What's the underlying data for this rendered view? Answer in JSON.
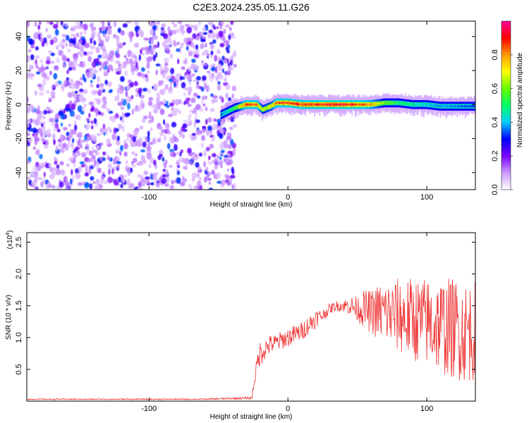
{
  "chart_data": [
    {
      "type": "heatmap",
      "title": "C2E3.2024.235.05.11.G26",
      "xlabel": "Height of straight line (km)",
      "ylabel": "Frequency (Hz)",
      "xlim": [
        -188,
        135
      ],
      "ylim": [
        -50,
        49
      ],
      "x_ticks": [
        -100,
        0,
        100
      ],
      "y_ticks": [
        -40,
        -20,
        0,
        20,
        40
      ],
      "x_tick_labels": [
        "-100",
        "0",
        "100"
      ],
      "y_tick_labels": [
        "-40",
        "-20",
        "0",
        "20",
        "40"
      ],
      "colorbar": {
        "label": "Normalized spectral amplitude",
        "range": [
          0,
          1
        ],
        "ticks": [
          "0.0",
          "0.2",
          "0.4",
          "0.6",
          "0.8"
        ],
        "tick_values": [
          0.0,
          0.2,
          0.4,
          0.6,
          0.8
        ],
        "colormap": [
          "#ffffff",
          "#cc99ff",
          "#7a00ff",
          "#0000ff",
          "#00ccff",
          "#00ff66",
          "#66ff00",
          "#ffff00",
          "#ff9900",
          "#ff0000",
          "#ff0099"
        ]
      },
      "noise_region": {
        "x": [
          -188,
          -38
        ],
        "description_levels": [
          0.05,
          0.3
        ]
      },
      "ridge": {
        "x": [
          -48,
          -38,
          -30,
          -22,
          -18,
          -12,
          -8,
          0,
          10,
          20,
          30,
          40,
          50,
          60,
          70,
          80,
          90,
          100,
          110,
          120,
          135
        ],
        "freq": [
          -6,
          -2,
          0,
          0,
          -3,
          -1,
          1,
          1,
          0,
          0,
          0,
          0,
          0,
          0,
          1,
          1,
          0,
          0,
          -1,
          -1,
          -1
        ],
        "amplitude": [
          0.35,
          0.6,
          0.95,
          0.9,
          0.7,
          0.75,
          0.9,
          0.95,
          0.95,
          0.95,
          0.98,
          0.98,
          0.95,
          0.85,
          0.65,
          0.55,
          0.5,
          0.45,
          0.4,
          0.4,
          0.35
        ]
      }
    },
    {
      "type": "line",
      "title": "",
      "xlabel": "Height of straight line (km)",
      "ylabel": "SNR (10 * v/v)",
      "y_multiplier": "(x10",
      "y_multiplier_exp": "4",
      "xlim": [
        -188,
        135
      ],
      "ylim": [
        0,
        2.65
      ],
      "x_ticks": [
        -100,
        0,
        100
      ],
      "x_tick_labels": [
        "-100",
        "0",
        "100"
      ],
      "y_ticks": [
        0.5,
        1.0,
        1.5,
        2.0,
        2.5
      ],
      "y_tick_labels": [
        "0.5",
        "1.0",
        "1.5",
        "2.0",
        "2.5"
      ],
      "color": "#ee3333",
      "series": [
        {
          "x": [
            -188,
            -150,
            -100,
            -60,
            -26,
            -24,
            -22,
            -20,
            -18,
            -15,
            -12,
            -10,
            -5,
            0,
            5,
            10,
            15,
            20,
            25,
            30,
            35,
            40,
            45,
            50,
            55,
            60,
            65,
            70,
            75,
            80,
            85,
            90,
            95,
            100,
            105,
            110,
            115,
            120,
            125,
            130,
            135
          ],
          "y": [
            0.03,
            0.03,
            0.03,
            0.03,
            0.05,
            0.35,
            0.6,
            0.75,
            0.8,
            0.85,
            0.9,
            0.9,
            0.95,
            1.0,
            1.05,
            1.1,
            1.2,
            1.3,
            1.35,
            1.45,
            1.5,
            1.5,
            1.5,
            1.45,
            1.45,
            1.4,
            1.4,
            1.4,
            1.35,
            1.35,
            1.3,
            1.3,
            1.25,
            1.25,
            1.2,
            1.2,
            1.15,
            1.15,
            1.1,
            1.1,
            1.1
          ],
          "spread": [
            0.01,
            0.01,
            0.01,
            0.01,
            0.02,
            0.1,
            0.15,
            0.2,
            0.2,
            0.15,
            0.15,
            0.15,
            0.15,
            0.15,
            0.15,
            0.15,
            0.15,
            0.15,
            0.1,
            0.08,
            0.08,
            0.1,
            0.15,
            0.2,
            0.3,
            0.35,
            0.45,
            0.5,
            0.55,
            0.6,
            0.65,
            0.65,
            0.7,
            0.7,
            0.75,
            0.75,
            0.8,
            0.8,
            0.8,
            0.8,
            0.8
          ]
        }
      ]
    }
  ]
}
